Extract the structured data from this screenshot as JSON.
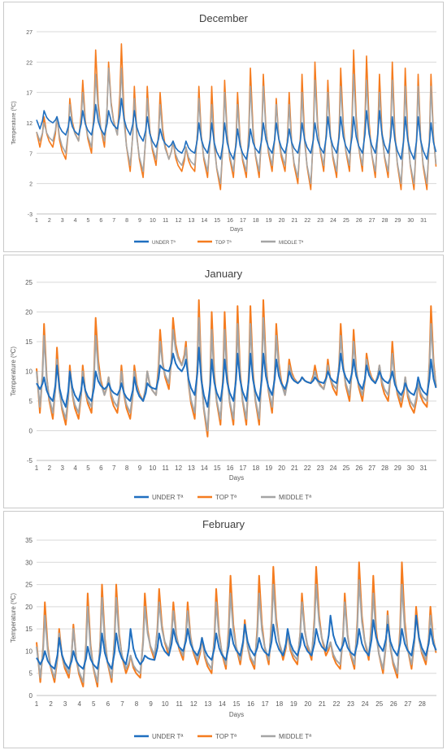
{
  "colors": {
    "under": "#1f6fc0",
    "top": "#f57c1f",
    "middle": "#a5a5a5",
    "grid": "#d9d9d9",
    "text": "#595959"
  },
  "chart_data": [
    {
      "type": "line",
      "title": "December",
      "xlabel": "Days",
      "ylabel": "Temperature (ºC)",
      "ylim": [
        -3,
        27
      ],
      "yticks": [
        -3,
        2,
        7,
        12,
        17,
        22,
        27
      ],
      "xlim": [
        1,
        32
      ],
      "xticks": [
        "1",
        "2",
        "3",
        "4",
        "5",
        "6",
        "7",
        "8",
        "9",
        "10",
        "11",
        "12",
        "13",
        "14",
        "15",
        "16",
        "17",
        "18",
        "19",
        "20",
        "21",
        "22",
        "23",
        "24",
        "25",
        "26",
        "27",
        "28",
        "29",
        "30",
        "31"
      ],
      "grid": true,
      "legend_position": "bottom",
      "series": [
        {
          "name": "UNDER Tª",
          "key": "under",
          "daily_max": [
            14,
            13,
            13,
            14,
            15,
            14,
            16,
            14,
            13,
            11,
            9,
            9,
            12,
            12,
            12,
            11,
            11,
            12,
            12,
            11,
            12,
            12,
            13,
            13,
            13,
            14,
            14,
            13,
            13,
            13,
            12
          ],
          "daily_min": [
            11,
            12,
            10,
            10,
            10,
            10,
            11,
            10,
            9,
            8,
            8,
            7,
            7,
            7,
            6,
            6,
            6,
            7,
            7,
            7,
            7,
            7,
            7,
            7,
            7,
            7,
            7,
            7,
            6,
            6,
            6
          ]
        },
        {
          "name": "TOP Tª",
          "key": "top",
          "daily_max": [
            13,
            13,
            16,
            19,
            24,
            22,
            25,
            18,
            18,
            17,
            9,
            8,
            18,
            18,
            19,
            17,
            21,
            20,
            16,
            17,
            20,
            22,
            19,
            21,
            24,
            23,
            20,
            22,
            21,
            20,
            20
          ],
          "daily_min": [
            8,
            8,
            6,
            9,
            7,
            8,
            10,
            4,
            3,
            5,
            6,
            4,
            4,
            3,
            1,
            3,
            3,
            3,
            4,
            4,
            2,
            1,
            4,
            3,
            4,
            4,
            3,
            3,
            1,
            1,
            1
          ]
        },
        {
          "name": "MIDDLE Tª",
          "key": "middle",
          "daily_max": [
            12,
            13,
            15,
            17,
            20,
            21,
            21,
            16,
            16,
            15,
            9,
            8,
            16,
            15,
            17,
            15,
            18,
            18,
            15,
            15,
            17,
            19,
            17,
            18,
            20,
            19,
            17,
            19,
            18,
            18,
            18
          ],
          "daily_min": [
            9,
            9,
            7,
            9,
            8,
            9,
            10,
            5,
            4,
            6,
            6,
            5,
            5,
            4,
            2,
            4,
            4,
            4,
            5,
            5,
            3,
            2,
            5,
            4,
            5,
            5,
            4,
            4,
            2,
            2,
            2
          ]
        }
      ]
    },
    {
      "type": "line",
      "title": "January",
      "xlabel": "Days",
      "ylabel": "Temperature (ºC)",
      "ylim": [
        -5,
        25
      ],
      "yticks": [
        -5,
        0,
        5,
        10,
        15,
        20,
        25
      ],
      "xlim": [
        1,
        32
      ],
      "xticks": [
        "1",
        "2",
        "3",
        "4",
        "5",
        "6",
        "7",
        "8",
        "9",
        "10",
        "11",
        "12",
        "13",
        "14",
        "15",
        "16",
        "17",
        "18",
        "19",
        "20",
        "21",
        "22",
        "23",
        "24",
        "25",
        "26",
        "27",
        "28",
        "29",
        "30",
        "31"
      ],
      "grid": true,
      "legend_position": "bottom",
      "series": [
        {
          "name": "UNDER Tª",
          "key": "under",
          "daily_max": [
            9,
            11,
            10,
            9,
            10,
            8,
            8,
            9,
            8,
            11,
            13,
            12,
            14,
            12,
            12,
            13,
            13,
            13,
            12,
            10,
            9,
            9,
            10,
            13,
            12,
            11,
            10,
            10,
            8,
            9,
            12
          ],
          "daily_min": [
            7,
            5,
            4,
            5,
            5,
            7,
            6,
            5,
            5,
            7,
            10,
            10,
            6,
            4,
            5,
            5,
            5,
            5,
            6,
            7,
            8,
            8,
            8,
            8,
            8,
            7,
            8,
            8,
            6,
            6,
            6
          ]
        },
        {
          "name": "TOP Tª",
          "key": "top",
          "daily_max": [
            18,
            14,
            11,
            11,
            19,
            9,
            11,
            11,
            10,
            17,
            19,
            15,
            22,
            20,
            20,
            21,
            21,
            22,
            18,
            12,
            9,
            11,
            12,
            18,
            17,
            13,
            11,
            15,
            9,
            8,
            21
          ],
          "daily_min": [
            3,
            2,
            1,
            2,
            3,
            6,
            3,
            2,
            5,
            6,
            7,
            11,
            2,
            -1,
            1,
            1,
            1,
            1,
            3,
            6,
            8,
            8,
            7,
            6,
            5,
            5,
            8,
            5,
            4,
            3,
            4
          ]
        },
        {
          "name": "MIDDLE Tª",
          "key": "middle",
          "daily_max": [
            16,
            12,
            10,
            10,
            16,
            9,
            10,
            10,
            10,
            15,
            17,
            14,
            19,
            17,
            17,
            18,
            18,
            19,
            16,
            11,
            9,
            10,
            11,
            16,
            15,
            12,
            11,
            13,
            9,
            8,
            18
          ],
          "daily_min": [
            4,
            3,
            2,
            3,
            4,
            6,
            4,
            3,
            5,
            6,
            8,
            11,
            3,
            0,
            2,
            2,
            2,
            2,
            4,
            6,
            8,
            8,
            7,
            7,
            6,
            6,
            8,
            6,
            5,
            4,
            5
          ]
        }
      ]
    },
    {
      "type": "line",
      "title": "February",
      "xlabel": "Days",
      "ylabel": "Temperature (ºC)",
      "ylim": [
        0,
        35
      ],
      "yticks": [
        0,
        5,
        10,
        15,
        20,
        25,
        30,
        35
      ],
      "xlim": [
        1,
        29
      ],
      "xticks": [
        "1",
        "2",
        "3",
        "4",
        "5",
        "6",
        "7",
        "8",
        "9",
        "10",
        "11",
        "12",
        "13",
        "14",
        "15",
        "16",
        "17",
        "18",
        "19",
        "20",
        "21",
        "22",
        "23",
        "24",
        "25",
        "26",
        "27",
        "28"
      ],
      "grid": true,
      "legend_position": "bottom",
      "series": [
        {
          "name": "UNDER Tª",
          "key": "under",
          "daily_max": [
            10,
            13,
            10,
            11,
            14,
            14,
            15,
            9,
            14,
            15,
            15,
            13,
            14,
            15,
            16,
            13,
            16,
            15,
            14,
            15,
            18,
            13,
            15,
            17,
            16,
            15,
            18,
            15
          ],
          "daily_min": [
            7,
            6,
            6,
            6,
            6,
            6,
            7,
            7,
            8,
            9,
            10,
            9,
            8,
            8,
            9,
            9,
            9,
            9,
            9,
            9,
            10,
            10,
            9,
            9,
            10,
            9,
            9,
            9
          ]
        },
        {
          "name": "TOP Tª",
          "key": "top",
          "daily_max": [
            21,
            15,
            16,
            23,
            25,
            25,
            9,
            23,
            24,
            21,
            21,
            13,
            24,
            27,
            17,
            27,
            29,
            14,
            23,
            29,
            12,
            23,
            30,
            27,
            19,
            30,
            20,
            20
          ],
          "daily_min": [
            3,
            3,
            4,
            2,
            2,
            3,
            5,
            4,
            8,
            9,
            8,
            7,
            5,
            6,
            7,
            6,
            7,
            8,
            7,
            8,
            9,
            6,
            6,
            8,
            5,
            4,
            6,
            7
          ]
        },
        {
          "name": "MIDDLE Tª",
          "key": "middle",
          "daily_max": [
            18,
            14,
            15,
            20,
            22,
            22,
            9,
            20,
            21,
            19,
            19,
            13,
            21,
            23,
            16,
            23,
            25,
            14,
            21,
            25,
            12,
            21,
            26,
            23,
            18,
            25,
            18,
            18
          ],
          "daily_min": [
            4,
            4,
            5,
            3,
            3,
            4,
            6,
            5,
            9,
            10,
            9,
            8,
            6,
            7,
            8,
            7,
            8,
            9,
            8,
            9,
            10,
            7,
            7,
            9,
            6,
            5,
            7,
            8
          ]
        }
      ]
    }
  ]
}
